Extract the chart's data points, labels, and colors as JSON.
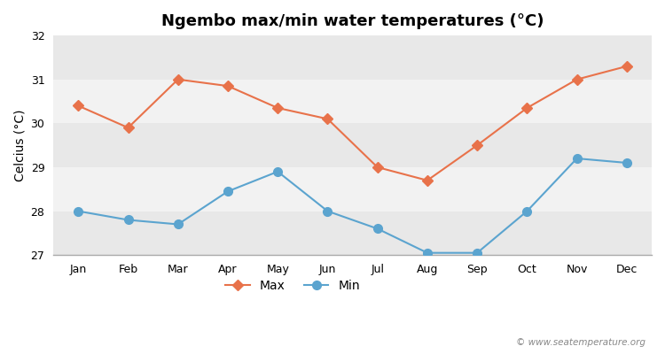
{
  "title": "Ngembo max/min water temperatures (°C)",
  "ylabel": "Celcius (°C)",
  "months": [
    "Jan",
    "Feb",
    "Mar",
    "Apr",
    "May",
    "Jun",
    "Jul",
    "Aug",
    "Sep",
    "Oct",
    "Nov",
    "Dec"
  ],
  "max_values": [
    30.4,
    29.9,
    31.0,
    30.85,
    30.35,
    30.1,
    29.0,
    28.7,
    29.5,
    30.35,
    31.0,
    31.3
  ],
  "min_values": [
    28.0,
    27.8,
    27.7,
    28.45,
    28.9,
    28.0,
    27.6,
    27.05,
    27.05,
    28.0,
    29.2,
    29.1
  ],
  "max_color": "#E8724A",
  "min_color": "#5BA4CF",
  "background_color": "#ffffff",
  "plot_bg_color": "#ffffff",
  "band_color_dark": "#e8e8e8",
  "band_color_light": "#f2f2f2",
  "ylim": [
    27,
    32
  ],
  "yticks": [
    27,
    28,
    29,
    30,
    31,
    32
  ],
  "legend_labels": [
    "Max",
    "Min"
  ],
  "watermark": "© www.seatemperature.org",
  "title_fontsize": 13,
  "axis_label_fontsize": 10,
  "tick_fontsize": 9,
  "legend_fontsize": 10,
  "line_width": 1.5,
  "marker_style_max": "D",
  "marker_style_min": "o",
  "marker_size_max": 6,
  "marker_size_min": 7
}
